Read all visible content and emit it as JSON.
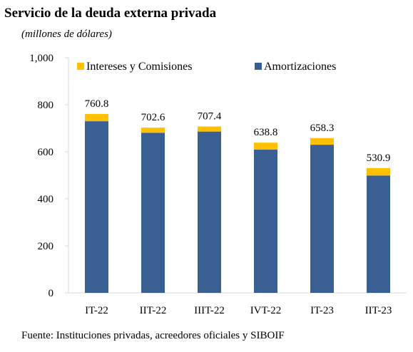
{
  "chart_data": {
    "type": "bar",
    "stacked": true,
    "title": "Servicio de la deuda externa privada",
    "subtitle": "(millones de dólares)",
    "source": "Fuente: Instituciones privadas, acreedores oficiales y SIBOIF",
    "categories": [
      "IT-22",
      "IIT-22",
      "IIIT-22",
      "IVT-22",
      "IT-23",
      "IIT-23"
    ],
    "series": [
      {
        "name": "Amortizaciones",
        "color": "#3A5F93",
        "values": [
          730,
          681,
          686,
          609,
          630,
          499
        ]
      },
      {
        "name": "Intereses y Comisiones",
        "color": "#FFC000",
        "values": [
          30.8,
          21.6,
          21.4,
          29.8,
          28.3,
          31.9
        ]
      }
    ],
    "totals": [
      "760.8",
      "702.6",
      "707.4",
      "638.8",
      "658.3",
      "530.9"
    ],
    "ylim": [
      0,
      1000
    ],
    "yticks": [
      "0",
      "200",
      "400",
      "600",
      "800",
      "1,000"
    ],
    "legend_position": "top",
    "grid": false
  }
}
